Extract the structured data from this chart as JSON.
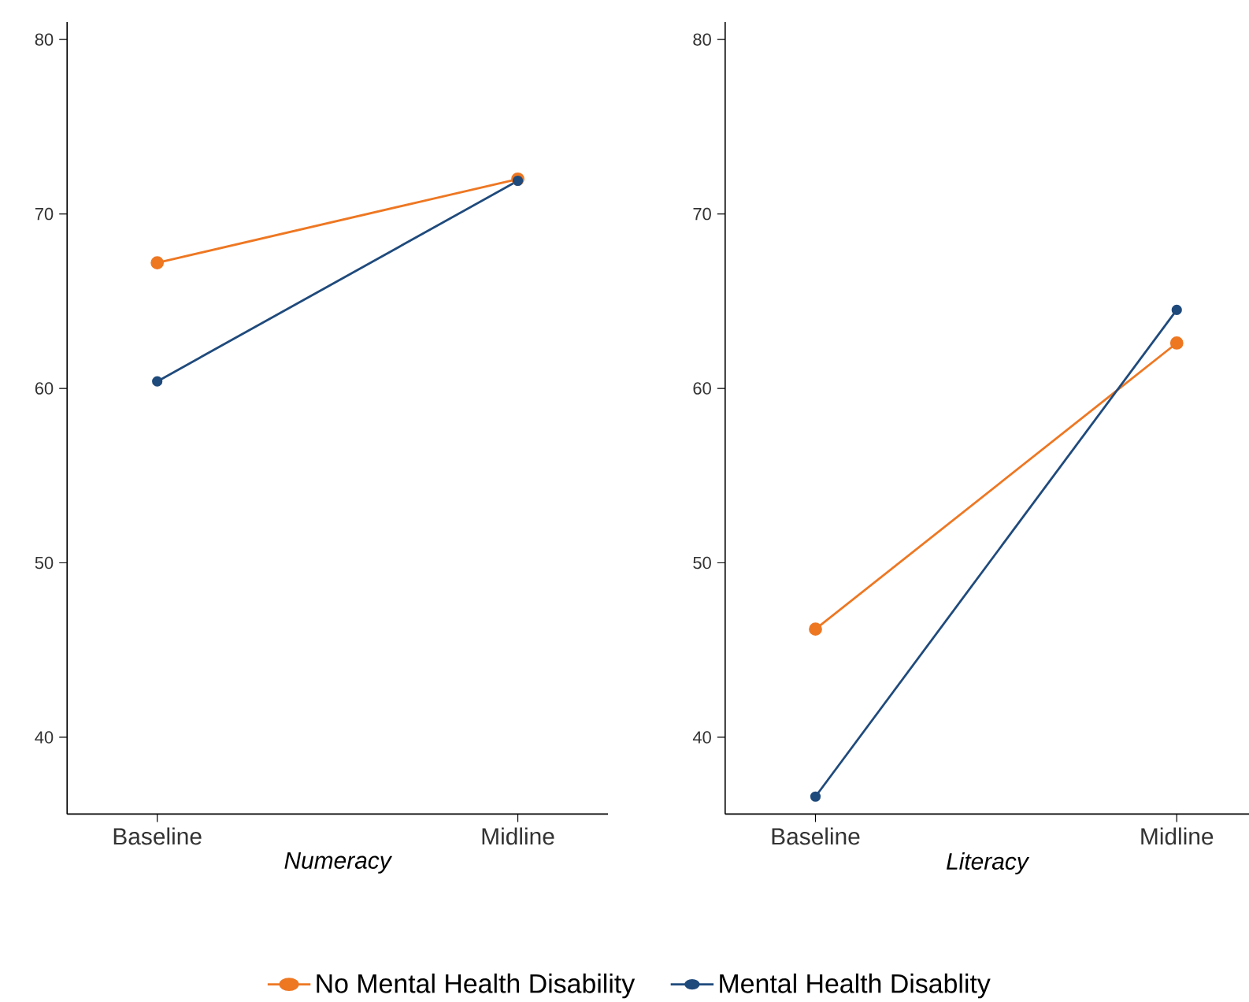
{
  "chart_data": [
    {
      "type": "line",
      "categories": [
        "Baseline",
        "Midline"
      ],
      "xlabel": "Numeracy",
      "ylim": [
        35.6,
        81
      ],
      "yticks": [
        40,
        50,
        60,
        70,
        80
      ],
      "grid": false,
      "marker": "circle",
      "legend": "bottom",
      "series": [
        {
          "name": "No Mental Health Disability",
          "color": "#ee7722",
          "values": [
            67.2,
            72.0
          ]
        },
        {
          "name": "Mental Health Disablity",
          "color": "#1f4a7c",
          "values": [
            60.4,
            71.9
          ]
        }
      ]
    },
    {
      "type": "line",
      "categories": [
        "Baseline",
        "Midline"
      ],
      "xlabel": "Literacy",
      "ylim": [
        35.6,
        81
      ],
      "yticks": [
        40,
        50,
        60,
        70,
        80
      ],
      "grid": false,
      "marker": "circle",
      "legend": false,
      "series": [
        {
          "color": "#ee7722",
          "values": [
            46.2,
            62.6
          ]
        },
        {
          "color": "#1f4a7c",
          "values": [
            36.6,
            64.5
          ]
        }
      ]
    }
  ]
}
